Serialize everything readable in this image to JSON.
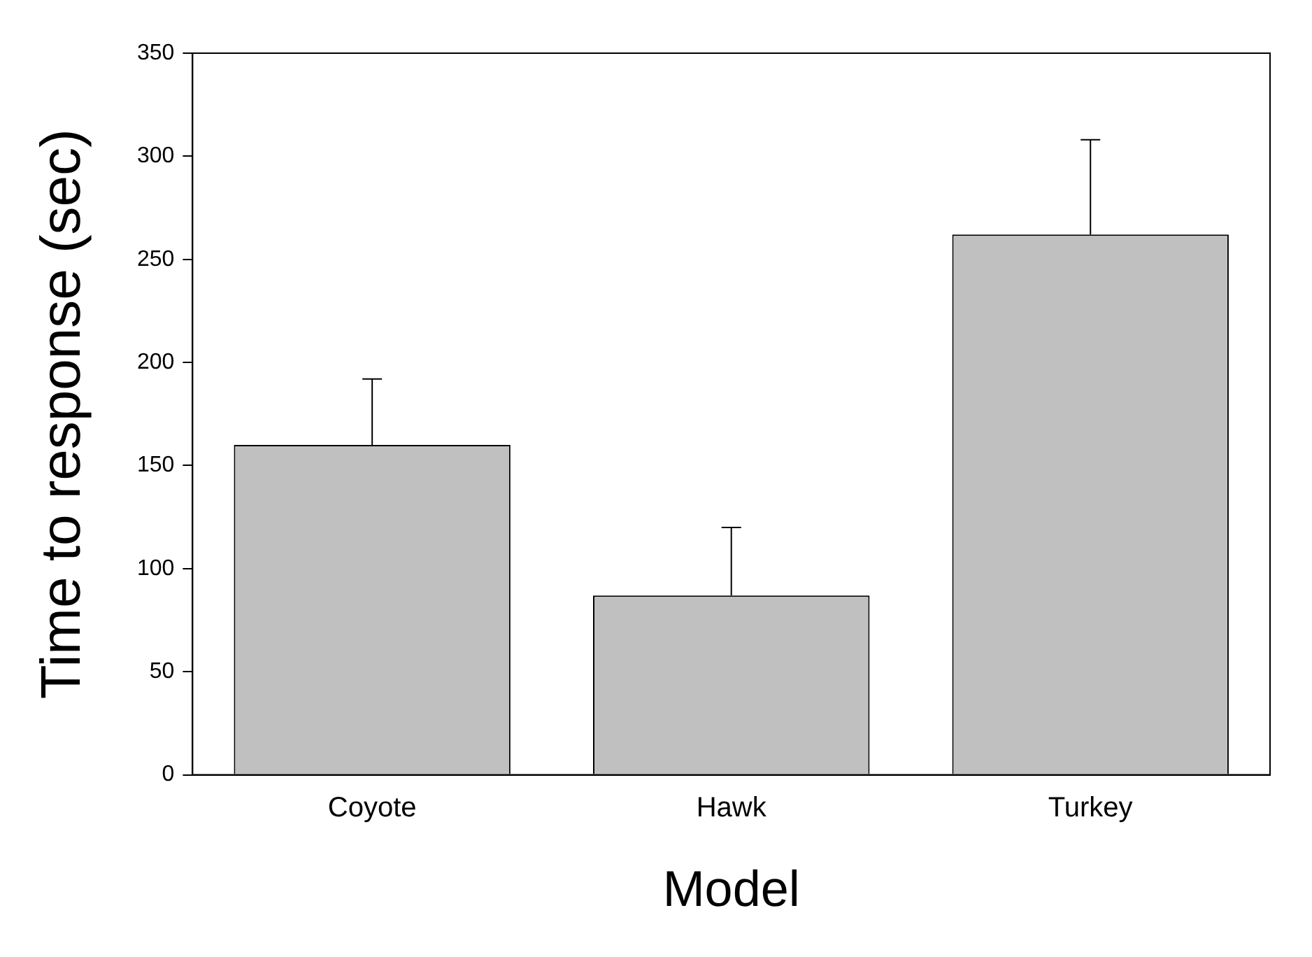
{
  "chart_data": {
    "type": "bar",
    "xlabel": "Model",
    "ylabel": "Time to response (sec)",
    "categories": [
      "Coyote",
      "Hawk",
      "Turkey"
    ],
    "values": [
      160,
      87,
      262
    ],
    "errors": [
      [
        160,
        192
      ],
      [
        87,
        120
      ],
      [
        262,
        308
      ]
    ],
    "color": "#c0c0c0",
    "ylim": [
      0,
      350
    ],
    "yticks": [
      0,
      50,
      100,
      150,
      200,
      250,
      300,
      350
    ],
    "grid": false,
    "legend": false
  }
}
